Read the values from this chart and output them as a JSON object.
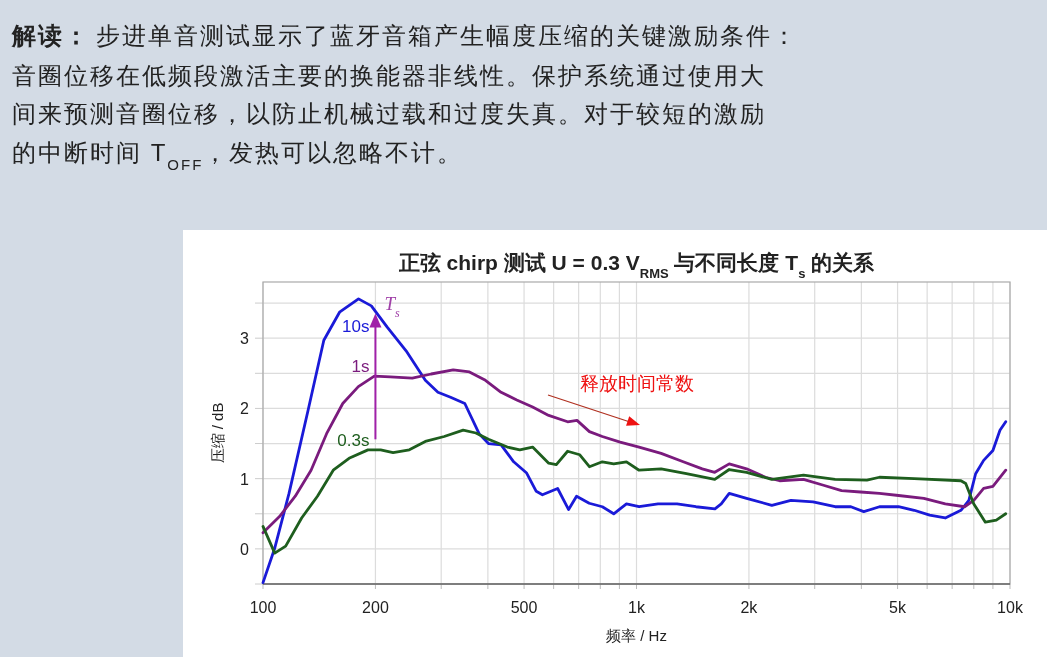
{
  "chart_data": {
    "type": "line",
    "title": "正弦 chirp 测试 U = 0.3 V$_{RMS}$ 与不同长度 T$_{s}$ 的关系",
    "xlabel": "频率 / Hz",
    "ylabel": "压缩 / dB",
    "annotations": [
      "解读：",
      "步进单音测试显示了蓝牙音箱产生幅度压缩的关键激励条件：",
      "音圈位移在低频段激活主要的换能器非线性。保护系统通过使用大",
      "间来预测音圈位移，以防止机械过载和过度失真。对于较短的激励",
      "的中断时间 T$_{OFF}$，发热可以忽略不计。",
      {
        "text": "T$_{s}$",
        "x": 200,
        "y": 3.35
      },
      "释放时间常数"
    ],
    "log": "x",
    "grid": true,
    "xlim": [
      100,
      10000
    ],
    "ylim": [
      -0.5,
      3.8
    ],
    "xticks": [
      100,
      {
        "value": 200,
        "label": "200"
      },
      {
        "value": 300,
        "label": null
      },
      {
        "value": 400,
        "label": null
      },
      {
        "value": 500,
        "label": "500"
      },
      {
        "value": 600,
        "label": null
      },
      {
        "value": 700,
        "label": null
      },
      {
        "value": 800,
        "label": null
      },
      {
        "value": 900,
        "label": null
      },
      {
        "value": 1000,
        "label": "1k"
      },
      {
        "value": 2000,
        "label": "2k"
      },
      {
        "value": 3000,
        "label": null
      },
      {
        "value": 4000,
        "label": null
      },
      {
        "value": 5000,
        "label": "5k"
      },
      {
        "value": 6000,
        "label": null
      },
      {
        "value": 7000,
        "label": null
      },
      {
        "value": 8000,
        "label": null
      },
      {
        "value": 9000,
        "label": null
      },
      {
        "value": 10000,
        "label": "10k"
      }
    ],
    "yticks": [
      {
        "value": -0.5,
        "label": null
      },
      0,
      {
        "value": 0.5,
        "label": null
      },
      1,
      {
        "value": 1.5,
        "label": null
      },
      2,
      {
        "value": 2.5,
        "label": null
      },
      3,
      {
        "value": 3.5,
        "label": null
      }
    ],
    "series": [
      {
        "name": "10s",
        "color": "#1a1ad8",
        "x": [
          100,
          107.5,
          117.4,
          132,
          145.5,
          160.3,
          180.2,
          195,
          214.8,
          241.6,
          272,
          294,
          317.8,
          347,
          379,
          401.5,
          434,
          469,
          508,
          539,
          560,
          615,
          658,
          691,
          747,
          810,
          869,
          940,
          1016,
          1142,
          1284,
          1443,
          1622,
          1686,
          1771,
          1971,
          2303,
          2591,
          2970,
          3402,
          3750,
          4060,
          4472,
          5030,
          5540,
          6095,
          6710,
          7390,
          7760,
          8090,
          8500,
          9000,
          9400,
          9740
        ],
        "values": [
          -0.48,
          0.01,
          0.79,
          1.97,
          2.97,
          3.37,
          3.56,
          3.46,
          3.16,
          2.82,
          2.4,
          2.23,
          2.16,
          2.07,
          1.64,
          1.5,
          1.48,
          1.24,
          1.08,
          0.82,
          0.77,
          0.86,
          0.56,
          0.75,
          0.65,
          0.6,
          0.5,
          0.64,
          0.6,
          0.64,
          0.64,
          0.6,
          0.57,
          0.64,
          0.79,
          0.72,
          0.62,
          0.69,
          0.67,
          0.6,
          0.6,
          0.53,
          0.6,
          0.6,
          0.55,
          0.48,
          0.44,
          0.55,
          0.69,
          1.07,
          1.26,
          1.4,
          1.69,
          1.81
        ]
      },
      {
        "name": "1s",
        "color": "#7a1b7d",
        "x": [
          100,
          110.7,
          122,
          134.5,
          148,
          163.5,
          180,
          198.6,
          219,
          251,
          282,
          323,
          357,
          394,
          434,
          478,
          527,
          582,
          654,
          693,
          748,
          810,
          904,
          1016,
          1164,
          1334,
          1500,
          1620,
          1771,
          1971,
          2215,
          2417,
          2800,
          3150,
          3540,
          3980,
          4472,
          5030,
          5880,
          6710,
          7560,
          8000,
          8500,
          9000,
          9740
        ],
        "values": [
          0.23,
          0.46,
          0.75,
          1.12,
          1.64,
          2.07,
          2.31,
          2.46,
          2.45,
          2.43,
          2.49,
          2.55,
          2.52,
          2.4,
          2.23,
          2.12,
          2.02,
          1.9,
          1.81,
          1.83,
          1.67,
          1.6,
          1.52,
          1.45,
          1.36,
          1.24,
          1.14,
          1.09,
          1.21,
          1.14,
          1.02,
          0.97,
          0.99,
          0.91,
          0.83,
          0.81,
          0.79,
          0.76,
          0.72,
          0.64,
          0.6,
          0.69,
          0.86,
          0.89,
          1.12
        ]
      },
      {
        "name": "0.3s",
        "color": "#1e5e1e",
        "x": [
          100,
          107.5,
          115,
          126.9,
          139.9,
          154.2,
          170,
          191,
          206.5,
          223,
          246.5,
          272,
          305.6,
          343.5,
          371.5,
          401.5,
          451,
          487,
          527,
          582,
          610,
          654,
          705,
          748,
          810,
          869,
          940,
          1016,
          1164,
          1360,
          1620,
          1771,
          1971,
          2303,
          2800,
          3402,
          4140,
          4472,
          5540,
          7390,
          7610,
          8000,
          8590,
          9190,
          9740
        ],
        "values": [
          0.32,
          -0.06,
          0.04,
          0.44,
          0.75,
          1.12,
          1.29,
          1.41,
          1.41,
          1.37,
          1.41,
          1.53,
          1.6,
          1.69,
          1.65,
          1.56,
          1.45,
          1.41,
          1.45,
          1.22,
          1.2,
          1.39,
          1.34,
          1.17,
          1.24,
          1.21,
          1.24,
          1.12,
          1.14,
          1.07,
          0.99,
          1.13,
          1.09,
          0.99,
          1.05,
          0.99,
          0.98,
          1.02,
          1.0,
          0.97,
          0.93,
          0.64,
          0.38,
          0.41,
          0.5
        ]
      }
    ]
  }
}
